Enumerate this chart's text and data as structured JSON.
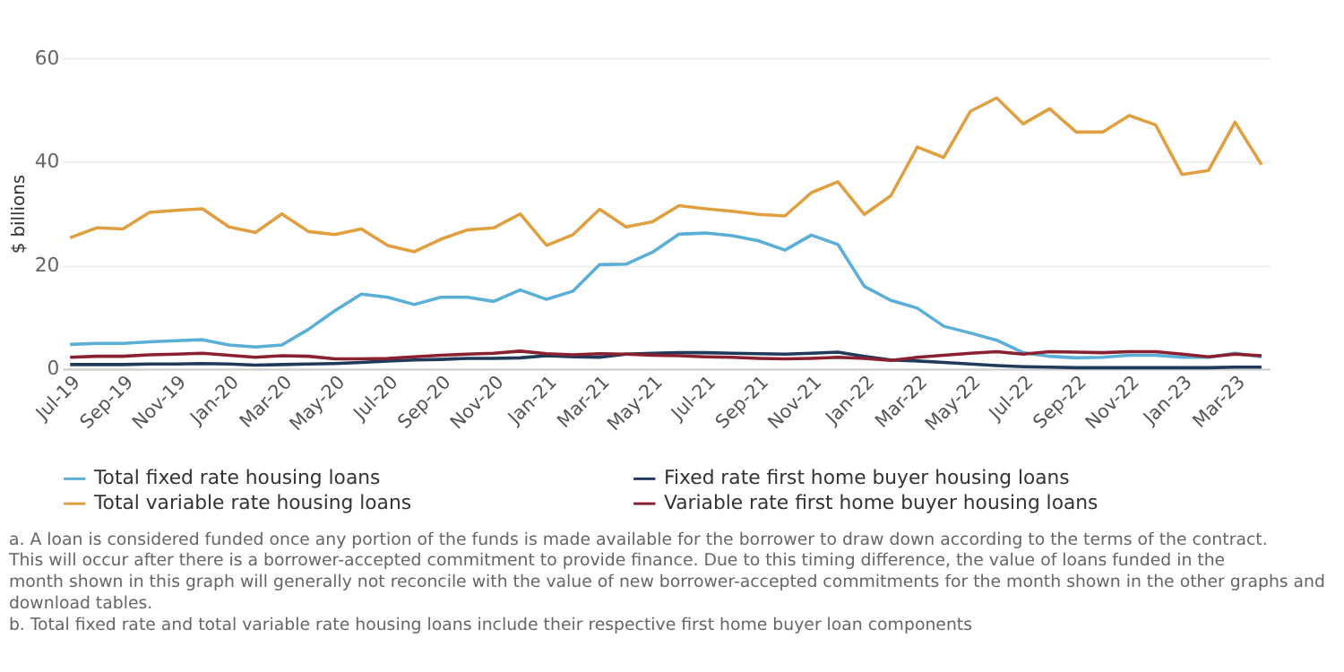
{
  "chart_data": {
    "type": "line",
    "ylabel": "$ billions",
    "categories": [
      "Jul-19",
      null,
      "Sep-19",
      null,
      "Nov-19",
      null,
      "Jan-20",
      null,
      "Mar-20",
      null,
      "May-20",
      null,
      "Jul-20",
      null,
      "Sep-20",
      null,
      "Nov-20",
      null,
      "Jan-21",
      null,
      "Mar-21",
      null,
      "May-21",
      null,
      "Jul-21",
      null,
      "Sep-21",
      null,
      "Nov-21",
      null,
      "Jan-22",
      null,
      "Mar-22",
      null,
      "May-22",
      null,
      "Jul-22",
      null,
      "Sep-22",
      null,
      "Nov-22",
      null,
      "Jan-23",
      null,
      "Mar-23",
      null
    ],
    "series": [
      {
        "name": "Total fixed rate housing loans",
        "color": "#5aafd6",
        "values": [
          4.7,
          4.9,
          4.9,
          5.2,
          5.4,
          5.6,
          4.6,
          4.2,
          4.6,
          7.6,
          11.2,
          14.4,
          13.8,
          12.4,
          13.8,
          13.8,
          13.0,
          15.2,
          13.4,
          15.0,
          20.1,
          20.2,
          22.5,
          26.0,
          26.2,
          25.7,
          24.7,
          22.9,
          25.8,
          24.0,
          15.9,
          13.2,
          11.7,
          8.2,
          6.9,
          5.5,
          3.1,
          2.4,
          2.1,
          2.2,
          2.6,
          2.6,
          2.2,
          2.2,
          3.0,
          2.3
        ]
      },
      {
        "name": "Fixed rate first home buyer housing loans",
        "color": "#1f3a5a",
        "values": [
          0.8,
          0.8,
          0.8,
          0.9,
          0.9,
          1.0,
          0.9,
          0.7,
          0.8,
          0.9,
          1.0,
          1.2,
          1.5,
          1.7,
          1.8,
          2.0,
          2.0,
          2.1,
          2.5,
          2.3,
          2.2,
          2.8,
          3.0,
          3.1,
          3.1,
          3.0,
          2.9,
          2.8,
          3.0,
          3.2,
          2.4,
          1.7,
          1.5,
          1.2,
          0.9,
          0.6,
          0.4,
          0.3,
          0.2,
          0.2,
          0.2,
          0.2,
          0.2,
          0.2,
          0.3,
          0.3
        ]
      },
      {
        "name": "Total variable rate housing loans",
        "color": "#e0a040",
        "values": [
          25.3,
          27.2,
          27.0,
          30.2,
          30.6,
          30.9,
          27.4,
          26.3,
          29.9,
          26.5,
          25.9,
          27.0,
          23.8,
          22.6,
          25.0,
          26.8,
          27.2,
          29.9,
          23.8,
          25.9,
          30.8,
          27.4,
          28.4,
          31.5,
          30.9,
          30.4,
          29.8,
          29.5,
          34.0,
          36.1,
          29.8,
          33.4,
          42.8,
          40.8,
          49.7,
          52.3,
          47.3,
          50.2,
          45.7,
          45.7,
          48.9,
          47.1,
          37.5,
          38.3,
          47.6,
          39.4
        ]
      },
      {
        "name": "Variable rate first home buyer housing loans",
        "color": "#8b2030",
        "values": [
          2.2,
          2.4,
          2.4,
          2.7,
          2.8,
          3.0,
          2.6,
          2.2,
          2.5,
          2.4,
          1.9,
          1.9,
          2.0,
          2.3,
          2.6,
          2.8,
          3.0,
          3.4,
          2.9,
          2.7,
          2.9,
          2.8,
          2.6,
          2.5,
          2.3,
          2.2,
          2.0,
          1.9,
          2.0,
          2.2,
          2.0,
          1.6,
          2.2,
          2.6,
          3.0,
          3.3,
          2.8,
          3.3,
          3.2,
          3.1,
          3.3,
          3.3,
          2.8,
          2.3,
          2.8,
          2.5
        ]
      }
    ],
    "ylim": [
      0,
      60
    ],
    "yticks": [
      0,
      20,
      40,
      60
    ],
    "grid": "y",
    "legend": "bottom",
    "marker": "none",
    "line_style": "solid",
    "annotations": [
      "a. A loan is considered funded once any portion of the funds is made available for the borrower to draw down according to the terms of the contract. This will occur after there is a borrower-accepted commitment to provide finance. Due to this timing difference, the value of loans funded in the month shown in this graph will generally not reconcile with the value of new borrower-accepted commitments for the month shown in the other graphs and download tables.",
      "b. Total fixed rate and total variable rate housing loans include their respective first home buyer loan components"
    ]
  }
}
